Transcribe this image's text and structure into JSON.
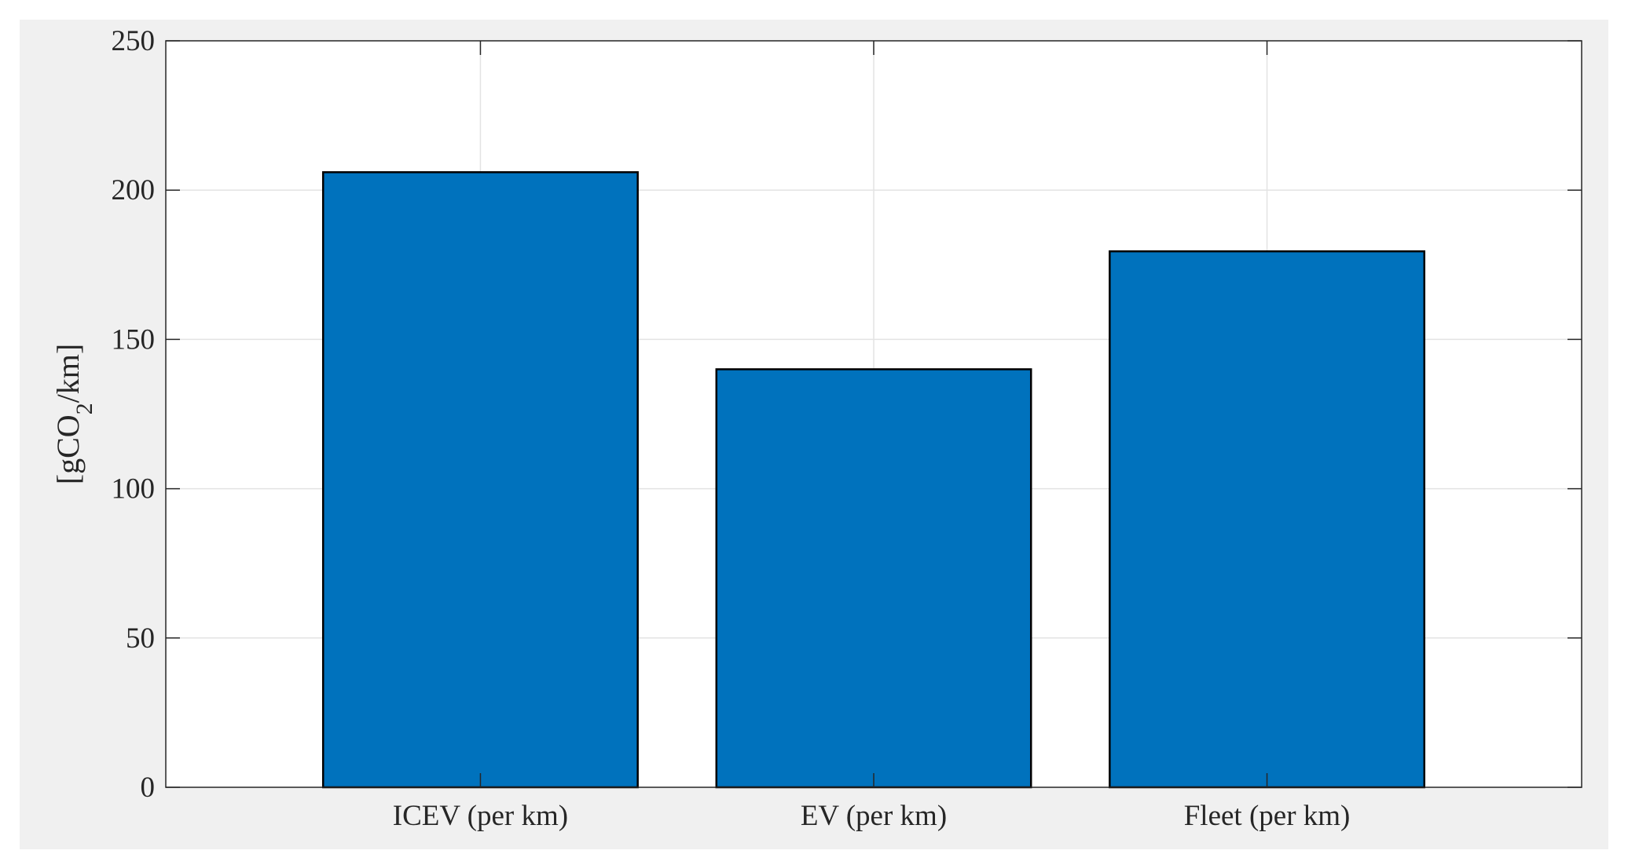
{
  "chart_data": {
    "type": "bar",
    "categories": [
      "ICEV (per km)",
      "EV (per km)",
      "Fleet (per km)"
    ],
    "values": [
      206,
      140,
      179.5
    ],
    "title": "",
    "xlabel": "",
    "ylabel_parts": {
      "before": "[gCO",
      "sub": "2",
      "after": "/km]"
    },
    "ylim": [
      0,
      250
    ],
    "yticks": [
      0,
      50,
      100,
      150,
      200,
      250
    ],
    "xlim": [
      0.2,
      3.8
    ],
    "grid": true,
    "bar_color": "#0072bd",
    "edge_color": "#000000"
  }
}
